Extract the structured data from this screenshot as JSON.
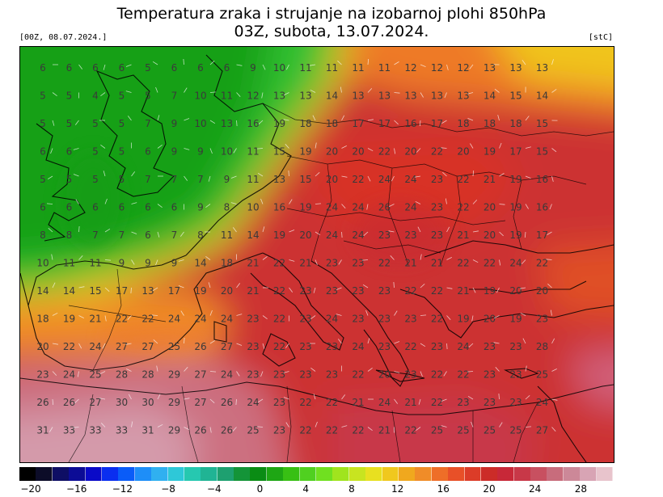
{
  "title_line1": "Temperatura zraka i strujanje na izobarnoj plohi 850hPa",
  "title_line2": "03Z, subota, 13.07.2024.",
  "run_label": "[00Z, 08.07.2024.]",
  "unit_label": "[stC]",
  "colorbar": {
    "labels": [
      "−20",
      "−16",
      "−12",
      "−8",
      "−4",
      "0",
      "4",
      "8",
      "12",
      "16",
      "20",
      "24",
      "28"
    ],
    "colors": [
      "#000000",
      "#0c0c28",
      "#0e0e64",
      "#0c0c96",
      "#0a0ac8",
      "#0a2ef0",
      "#0a5cf8",
      "#1e8ef8",
      "#30b0f0",
      "#2ec8d8",
      "#26c8b0",
      "#20b494",
      "#1ea070",
      "#149438",
      "#0a8c14",
      "#1ea614",
      "#38c014",
      "#50d020",
      "#70e020",
      "#a0e41e",
      "#c8e420",
      "#e8e020",
      "#f0c81e",
      "#f0a81e",
      "#f08c28",
      "#ee6e28",
      "#e85028",
      "#dc3c28",
      "#cc2c28",
      "#c82838",
      "#c83848",
      "#c85060",
      "#c86c7c",
      "#cc8898",
      "#d8a4b4",
      "#e8c4cc"
    ]
  },
  "grid_values": [
    [
      "6",
      "6",
      "6",
      "6",
      "5",
      "6",
      "6",
      "6",
      "9",
      "10",
      "11",
      "11",
      "11",
      "11",
      "12",
      "12",
      "12",
      "13",
      "13",
      "13"
    ],
    [
      "5",
      "5",
      "4",
      "5",
      "5",
      "7",
      "10",
      "11",
      "12",
      "13",
      "13",
      "14",
      "13",
      "13",
      "13",
      "13",
      "13",
      "14",
      "15",
      "14"
    ],
    [
      "5",
      "5",
      "5",
      "5",
      "7",
      "9",
      "10",
      "13",
      "16",
      "19",
      "18",
      "18",
      "17",
      "17",
      "16",
      "17",
      "18",
      "18",
      "18",
      "15"
    ],
    [
      "6",
      "6",
      "5",
      "5",
      "6",
      "9",
      "9",
      "10",
      "11",
      "15",
      "19",
      "20",
      "20",
      "22",
      "20",
      "22",
      "20",
      "19",
      "17",
      "15"
    ],
    [
      "5",
      "5",
      "5",
      "5",
      "7",
      "7",
      "7",
      "9",
      "11",
      "13",
      "15",
      "20",
      "22",
      "24",
      "24",
      "23",
      "22",
      "21",
      "19",
      "16"
    ],
    [
      "6",
      "6",
      "6",
      "6",
      "6",
      "6",
      "9",
      "8",
      "10",
      "16",
      "19",
      "24",
      "24",
      "26",
      "24",
      "23",
      "22",
      "20",
      "19",
      "16"
    ],
    [
      "8",
      "8",
      "7",
      "7",
      "6",
      "7",
      "8",
      "11",
      "14",
      "19",
      "20",
      "24",
      "24",
      "23",
      "23",
      "23",
      "21",
      "20",
      "19",
      "17"
    ],
    [
      "10",
      "11",
      "11",
      "9",
      "9",
      "9",
      "14",
      "18",
      "21",
      "22",
      "21",
      "23",
      "23",
      "22",
      "21",
      "21",
      "22",
      "22",
      "24",
      "22"
    ],
    [
      "14",
      "14",
      "15",
      "17",
      "13",
      "17",
      "19",
      "20",
      "21",
      "22",
      "23",
      "23",
      "23",
      "23",
      "22",
      "22",
      "21",
      "19",
      "20",
      "20"
    ],
    [
      "18",
      "19",
      "21",
      "22",
      "22",
      "24",
      "24",
      "24",
      "23",
      "22",
      "23",
      "24",
      "23",
      "23",
      "23",
      "22",
      "19",
      "20",
      "19",
      "23"
    ],
    [
      "20",
      "22",
      "24",
      "27",
      "27",
      "25",
      "26",
      "27",
      "23",
      "22",
      "23",
      "23",
      "24",
      "23",
      "22",
      "23",
      "24",
      "23",
      "23",
      "28"
    ],
    [
      "23",
      "24",
      "25",
      "28",
      "28",
      "29",
      "27",
      "24",
      "23",
      "23",
      "23",
      "23",
      "22",
      "20",
      "23",
      "22",
      "22",
      "23",
      "23",
      "25"
    ],
    [
      "26",
      "26",
      "27",
      "30",
      "30",
      "29",
      "27",
      "26",
      "24",
      "23",
      "22",
      "22",
      "21",
      "24",
      "21",
      "22",
      "23",
      "23",
      "23",
      "24"
    ],
    [
      "31",
      "33",
      "33",
      "33",
      "31",
      "29",
      "26",
      "26",
      "25",
      "23",
      "22",
      "22",
      "22",
      "21",
      "22",
      "25",
      "25",
      "25",
      "25",
      "27"
    ]
  ]
}
